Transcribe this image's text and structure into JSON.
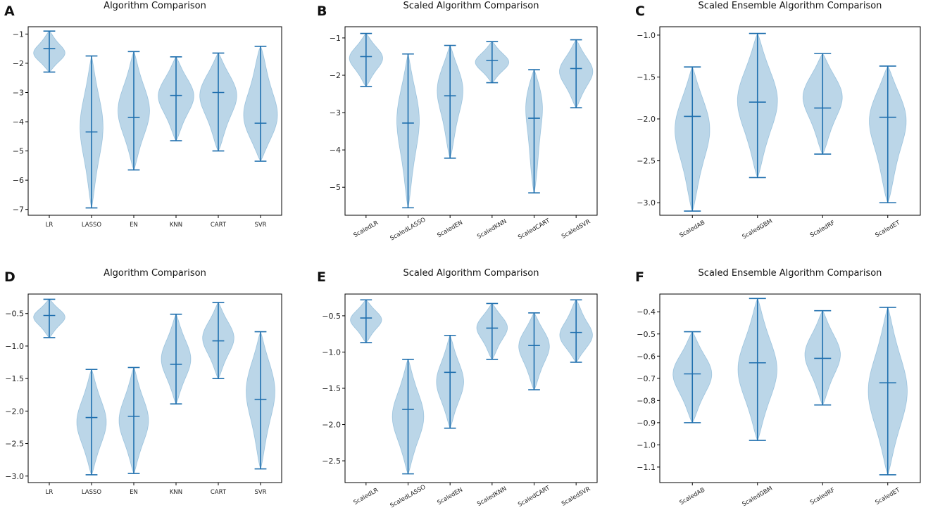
{
  "figure": {
    "colors": {
      "violin": "#1f77b4",
      "lines": "#1f6fae"
    }
  },
  "chart_data": [
    {
      "panel": "A",
      "type": "violin",
      "title": "Algorithm Comparison",
      "ylim": [
        -7.2,
        -0.75
      ],
      "yticks": [
        -1,
        -2,
        -3,
        -4,
        -5,
        -6,
        -7
      ],
      "tick_decimals": 0,
      "xtick_rotation": 0,
      "categories": [
        "LR",
        "LASSO",
        "EN",
        "KNN",
        "CART",
        "SVR"
      ],
      "series": [
        {
          "name": "LR",
          "min": -2.3,
          "max": -0.9,
          "median": -1.5,
          "width": 0.75,
          "peak": 0.55
        },
        {
          "name": "LASSO",
          "min": -6.95,
          "max": -1.75,
          "median": -4.35,
          "width": 0.55,
          "peak": 0.45
        },
        {
          "name": "EN",
          "min": -5.65,
          "max": -1.6,
          "median": -3.85,
          "width": 0.75,
          "peak": 0.5
        },
        {
          "name": "KNN",
          "min": -4.65,
          "max": -1.78,
          "median": -3.1,
          "width": 0.85,
          "peak": 0.45
        },
        {
          "name": "CART",
          "min": -5.0,
          "max": -1.65,
          "median": -3.0,
          "width": 0.9,
          "peak": 0.4
        },
        {
          "name": "SVR",
          "min": -5.35,
          "max": -1.42,
          "median": -4.05,
          "width": 0.85,
          "peak": 0.65
        }
      ]
    },
    {
      "panel": "B",
      "type": "violin",
      "title": "Scaled Algorithm Comparison",
      "ylim": [
        -5.75,
        -0.7
      ],
      "yticks": [
        -1,
        -2,
        -3,
        -4,
        -5
      ],
      "tick_decimals": 0,
      "xtick_rotation": -30,
      "categories": [
        "ScaledLR",
        "ScaledLASSO",
        "ScaledEN",
        "ScaledKNN",
        "ScaledCART",
        "ScaledSVR"
      ],
      "series": [
        {
          "name": "ScaledLR",
          "min": -2.3,
          "max": -0.88,
          "median": -1.5,
          "width": 0.8,
          "peak": 0.45
        },
        {
          "name": "ScaledLASSO",
          "min": -5.55,
          "max": -1.43,
          "median": -3.28,
          "width": 0.55,
          "peak": 0.4
        },
        {
          "name": "ScaledEN",
          "min": -4.22,
          "max": -1.2,
          "median": -2.55,
          "width": 0.65,
          "peak": 0.35
        },
        {
          "name": "ScaledKNN",
          "min": -2.2,
          "max": -1.1,
          "median": -1.6,
          "width": 0.8,
          "peak": 0.5
        },
        {
          "name": "ScaledCART",
          "min": -5.15,
          "max": -1.85,
          "median": -3.15,
          "width": 0.5,
          "peak": 0.2
        },
        {
          "name": "ScaledSVR",
          "min": -2.87,
          "max": -1.05,
          "median": -1.82,
          "width": 0.8,
          "peak": 0.45
        }
      ]
    },
    {
      "panel": "C",
      "type": "violin",
      "title": "Scaled Ensemble Algorithm Comparison",
      "ylim": [
        -3.15,
        -0.9
      ],
      "yticks": [
        -1.0,
        -1.5,
        -2.0,
        -2.5,
        -3.0
      ],
      "tick_decimals": 1,
      "xtick_rotation": -30,
      "categories": [
        "ScaledAB",
        "ScaledGBM",
        "ScaledRF",
        "ScaledET"
      ],
      "series": [
        {
          "name": "ScaledAB",
          "min": -3.1,
          "max": -1.38,
          "median": -1.97,
          "width": 0.55,
          "peak": 0.4
        },
        {
          "name": "ScaledGBM",
          "min": -2.7,
          "max": -0.98,
          "median": -1.8,
          "width": 0.62,
          "peak": 0.45
        },
        {
          "name": "ScaledRF",
          "min": -2.42,
          "max": -1.22,
          "median": -1.87,
          "width": 0.62,
          "peak": 0.4
        },
        {
          "name": "ScaledET",
          "min": -3.0,
          "max": -1.37,
          "median": -1.98,
          "width": 0.6,
          "peak": 0.35
        }
      ]
    },
    {
      "panel": "D",
      "type": "violin",
      "title": "Algorithm Comparison",
      "ylim": [
        -3.1,
        -0.2
      ],
      "yticks": [
        -0.5,
        -1.0,
        -1.5,
        -2.0,
        -2.5,
        -3.0
      ],
      "tick_decimals": 1,
      "xtick_rotation": 0,
      "categories": [
        "LR",
        "LASSO",
        "EN",
        "KNN",
        "CART",
        "SVR"
      ],
      "series": [
        {
          "name": "LR",
          "min": -0.87,
          "max": -0.28,
          "median": -0.53,
          "width": 0.75,
          "peak": 0.45
        },
        {
          "name": "LASSO",
          "min": -2.98,
          "max": -1.36,
          "median": -2.1,
          "width": 0.7,
          "peak": 0.5
        },
        {
          "name": "EN",
          "min": -2.96,
          "max": -1.33,
          "median": -2.08,
          "width": 0.7,
          "peak": 0.5
        },
        {
          "name": "KNN",
          "min": -1.89,
          "max": -0.51,
          "median": -1.28,
          "width": 0.7,
          "peak": 0.5
        },
        {
          "name": "CART",
          "min": -1.5,
          "max": -0.33,
          "median": -0.92,
          "width": 0.75,
          "peak": 0.45
        },
        {
          "name": "SVR",
          "min": -2.89,
          "max": -0.78,
          "median": -1.82,
          "width": 0.7,
          "peak": 0.4
        }
      ]
    },
    {
      "panel": "E",
      "type": "violin",
      "title": "Scaled Algorithm Comparison",
      "ylim": [
        -2.8,
        -0.2
      ],
      "yticks": [
        -0.5,
        -1.0,
        -1.5,
        -2.0,
        -2.5
      ],
      "tick_decimals": 1,
      "xtick_rotation": -30,
      "categories": [
        "ScaledLR",
        "ScaledLASSO",
        "ScaledEN",
        "ScaledKNN",
        "ScaledCART",
        "ScaledSVR"
      ],
      "series": [
        {
          "name": "ScaledLR",
          "min": -0.87,
          "max": -0.28,
          "median": -0.53,
          "width": 0.75,
          "peak": 0.45
        },
        {
          "name": "ScaledLASSO",
          "min": -2.68,
          "max": -1.1,
          "median": -1.79,
          "width": 0.75,
          "peak": 0.5
        },
        {
          "name": "ScaledEN",
          "min": -2.05,
          "max": -0.77,
          "median": -1.28,
          "width": 0.65,
          "peak": 0.5
        },
        {
          "name": "ScaledKNN",
          "min": -1.1,
          "max": -0.33,
          "median": -0.67,
          "width": 0.75,
          "peak": 0.4
        },
        {
          "name": "ScaledCART",
          "min": -1.52,
          "max": -0.46,
          "median": -0.91,
          "width": 0.75,
          "peak": 0.4
        },
        {
          "name": "ScaledSVR",
          "min": -1.14,
          "max": -0.28,
          "median": -0.73,
          "width": 0.8,
          "peak": 0.6
        }
      ]
    },
    {
      "panel": "F",
      "type": "violin",
      "title": "Scaled Ensemble Algorithm Comparison",
      "ylim": [
        -1.17,
        -0.32
      ],
      "yticks": [
        -0.4,
        -0.5,
        -0.6,
        -0.7,
        -0.8,
        -0.9,
        -1.0,
        -1.1
      ],
      "tick_decimals": 1,
      "xtick_rotation": -30,
      "categories": [
        "ScaledAB",
        "ScaledGBM",
        "ScaledRF",
        "ScaledET"
      ],
      "series": [
        {
          "name": "ScaledAB",
          "min": -0.9,
          "max": -0.49,
          "median": -0.68,
          "width": 0.6,
          "peak": 0.45
        },
        {
          "name": "ScaledGBM",
          "min": -0.98,
          "max": -0.34,
          "median": -0.63,
          "width": 0.6,
          "peak": 0.5
        },
        {
          "name": "ScaledRF",
          "min": -0.82,
          "max": -0.395,
          "median": -0.61,
          "width": 0.55,
          "peak": 0.45
        },
        {
          "name": "ScaledET",
          "min": -1.135,
          "max": -0.38,
          "median": -0.72,
          "width": 0.6,
          "peak": 0.5
        }
      ]
    }
  ]
}
